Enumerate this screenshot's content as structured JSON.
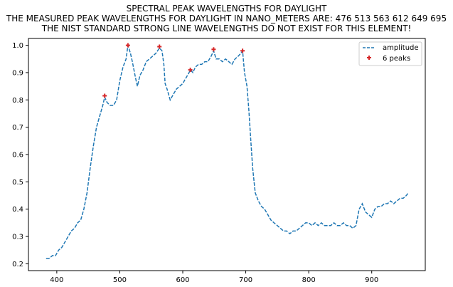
{
  "chart_data": {
    "type": "line",
    "title_lines": [
      "SPECTRAL PEAK WAVELENGTHS FOR DAYLIGHT",
      "THE MEASURED PEAK WAVELENGTHS FOR DAYLIGHT IN NANO_METERS ARE: 476 513 563 612 649 695",
      "THE NIST STANDARD STRONG LINE WAVELENGTHS DO NOT EXIST FOR THIS ELEMENT!"
    ],
    "xlim": [
      355,
      985
    ],
    "ylim": [
      0.175,
      1.025
    ],
    "x_ticks": [
      400,
      500,
      600,
      700,
      800,
      900
    ],
    "y_ticks": [
      0.2,
      0.3,
      0.4,
      0.5,
      0.6,
      0.7,
      0.8,
      0.9,
      1.0
    ],
    "y_tick_labels": [
      "0.2",
      "0.3",
      "0.4",
      "0.5",
      "0.6",
      "0.7",
      "0.8",
      "0.9",
      "1.0"
    ],
    "grid": false,
    "legend_position": "top-right",
    "series": [
      {
        "name": "amplitude",
        "style": "dashed",
        "color": "#1f77b4",
        "x": [
          383,
          388,
          393,
          398,
          403,
          408,
          413,
          418,
          423,
          428,
          433,
          438,
          443,
          448,
          453,
          458,
          463,
          468,
          473,
          476,
          480,
          485,
          490,
          495,
          500,
          505,
          510,
          513,
          517,
          520,
          525,
          528,
          532,
          537,
          542,
          547,
          552,
          557,
          560,
          563,
          567,
          570,
          572,
          575,
          580,
          585,
          590,
          595,
          600,
          605,
          610,
          612,
          616,
          620,
          625,
          630,
          635,
          640,
          645,
          649,
          653,
          658,
          663,
          668,
          673,
          678,
          683,
          688,
          692,
          695,
          698,
          702,
          705,
          708,
          711,
          715,
          720,
          725,
          730,
          735,
          740,
          745,
          750,
          755,
          760,
          765,
          770,
          775,
          780,
          785,
          790,
          795,
          800,
          805,
          810,
          815,
          820,
          825,
          830,
          835,
          840,
          845,
          850,
          855,
          860,
          865,
          870,
          875,
          880,
          885,
          890,
          895,
          900,
          905,
          910,
          915,
          920,
          925,
          930,
          935,
          940,
          945,
          950,
          955,
          958
        ],
        "y": [
          0.22,
          0.22,
          0.23,
          0.23,
          0.25,
          0.26,
          0.28,
          0.3,
          0.32,
          0.33,
          0.35,
          0.36,
          0.4,
          0.46,
          0.55,
          0.63,
          0.7,
          0.74,
          0.78,
          0.81,
          0.79,
          0.78,
          0.78,
          0.8,
          0.87,
          0.92,
          0.95,
          1.0,
          0.97,
          0.94,
          0.88,
          0.85,
          0.89,
          0.91,
          0.94,
          0.95,
          0.96,
          0.97,
          0.98,
          0.99,
          0.98,
          0.93,
          0.86,
          0.84,
          0.8,
          0.82,
          0.84,
          0.85,
          0.86,
          0.88,
          0.9,
          0.91,
          0.9,
          0.92,
          0.93,
          0.93,
          0.94,
          0.94,
          0.96,
          0.98,
          0.95,
          0.95,
          0.94,
          0.95,
          0.94,
          0.93,
          0.95,
          0.96,
          0.97,
          0.98,
          0.9,
          0.85,
          0.76,
          0.65,
          0.55,
          0.46,
          0.43,
          0.41,
          0.4,
          0.38,
          0.36,
          0.35,
          0.34,
          0.33,
          0.32,
          0.32,
          0.31,
          0.32,
          0.32,
          0.33,
          0.34,
          0.35,
          0.35,
          0.34,
          0.35,
          0.34,
          0.35,
          0.34,
          0.34,
          0.34,
          0.35,
          0.34,
          0.34,
          0.35,
          0.34,
          0.34,
          0.33,
          0.34,
          0.4,
          0.42,
          0.39,
          0.38,
          0.37,
          0.4,
          0.41,
          0.41,
          0.42,
          0.42,
          0.43,
          0.42,
          0.43,
          0.44,
          0.44,
          0.45,
          0.46
        ]
      },
      {
        "name": "6 peaks",
        "style": "markers",
        "color": "#d62728",
        "x": [
          476,
          513,
          563,
          612,
          649,
          695
        ],
        "y": [
          0.815,
          1.0,
          0.995,
          0.91,
          0.985,
          0.98
        ]
      }
    ]
  }
}
